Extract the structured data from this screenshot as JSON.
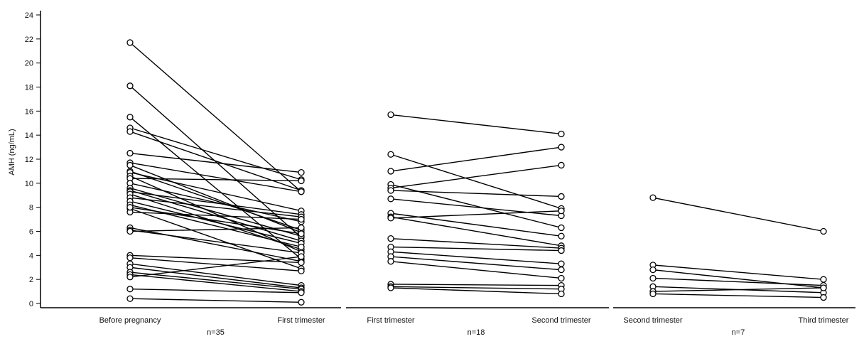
{
  "chart_data": {
    "type": "line",
    "ylabel": "AMH (ng/mL)",
    "ylim": [
      0,
      24
    ],
    "yticks": [
      0,
      2,
      4,
      6,
      8,
      10,
      12,
      14,
      16,
      18,
      20,
      22,
      24
    ],
    "grid": false,
    "panels": [
      {
        "categories": [
          "Before pregnancy",
          "First trimester"
        ],
        "n_label": "n=35",
        "pairs": [
          [
            21.7,
            9.3
          ],
          [
            18.1,
            5.5
          ],
          [
            15.5,
            3.7
          ],
          [
            14.6,
            10.3
          ],
          [
            14.3,
            9.4
          ],
          [
            12.5,
            10.9
          ],
          [
            11.7,
            9.3
          ],
          [
            11.5,
            5.9
          ],
          [
            11.0,
            6.1
          ],
          [
            10.9,
            7.7
          ],
          [
            10.6,
            4.3
          ],
          [
            10.4,
            10.2
          ],
          [
            10.0,
            6.8
          ],
          [
            9.6,
            5.6
          ],
          [
            9.4,
            5.2
          ],
          [
            9.3,
            7.4
          ],
          [
            9.1,
            4.5
          ],
          [
            8.8,
            7.2
          ],
          [
            8.5,
            5.0
          ],
          [
            8.2,
            4.7
          ],
          [
            7.9,
            2.9
          ],
          [
            7.6,
            7.0
          ],
          [
            6.3,
            3.5
          ],
          [
            6.1,
            4.2
          ],
          [
            6.0,
            6.3
          ],
          [
            4.0,
            3.4
          ],
          [
            3.8,
            2.7
          ],
          [
            3.3,
            1.5
          ],
          [
            3.0,
            1.3
          ],
          [
            2.6,
            1.2
          ],
          [
            2.4,
            1.0
          ],
          [
            2.2,
            3.9
          ],
          [
            1.2,
            0.9
          ],
          [
            0.4,
            0.1
          ],
          [
            8.0,
            5.8
          ]
        ]
      },
      {
        "categories": [
          "First trimester",
          "Second trimester"
        ],
        "n_label": "n=18",
        "pairs": [
          [
            15.7,
            14.1
          ],
          [
            12.4,
            7.9
          ],
          [
            11.0,
            13.0
          ],
          [
            9.9,
            6.3
          ],
          [
            9.6,
            11.5
          ],
          [
            9.4,
            8.9
          ],
          [
            8.7,
            7.3
          ],
          [
            7.5,
            5.6
          ],
          [
            7.2,
            4.8
          ],
          [
            7.1,
            7.7
          ],
          [
            5.4,
            4.6
          ],
          [
            4.7,
            4.4
          ],
          [
            4.3,
            3.3
          ],
          [
            3.9,
            2.8
          ],
          [
            3.5,
            2.1
          ],
          [
            1.6,
            1.5
          ],
          [
            1.4,
            1.2
          ],
          [
            1.3,
            0.8
          ]
        ]
      },
      {
        "categories": [
          "Second trimester",
          "Third trimester"
        ],
        "n_label": "n=7",
        "pairs": [
          [
            8.8,
            6.0
          ],
          [
            3.2,
            2.0
          ],
          [
            2.8,
            1.3
          ],
          [
            2.1,
            1.5
          ],
          [
            1.4,
            0.9
          ],
          [
            1.0,
            1.3
          ],
          [
            0.8,
            0.5
          ]
        ]
      }
    ]
  }
}
